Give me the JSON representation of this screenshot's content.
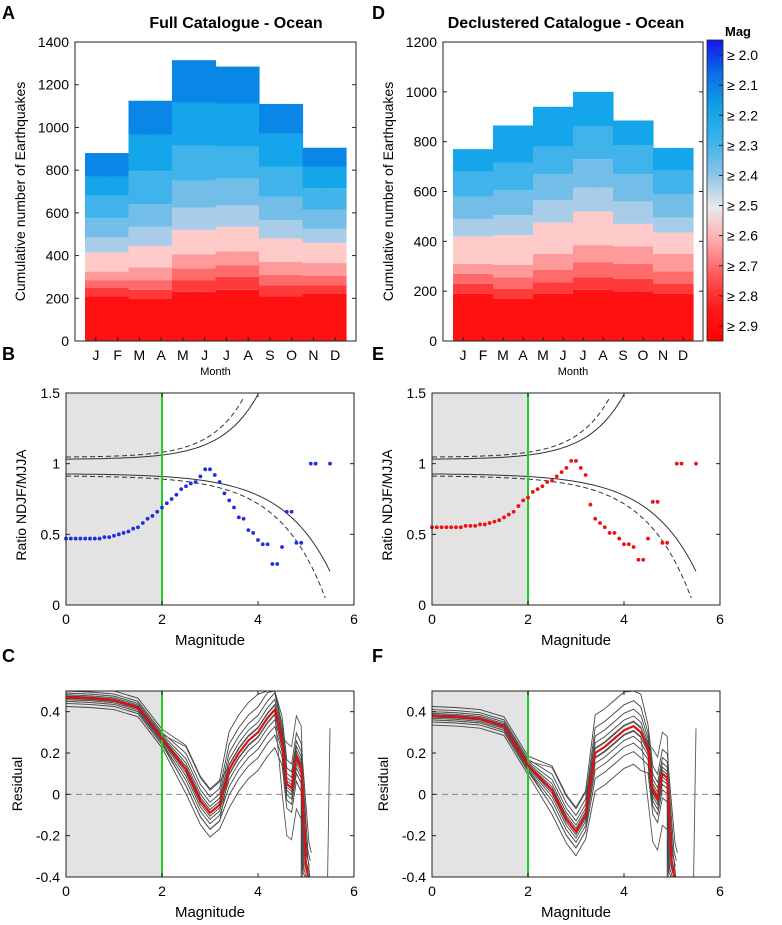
{
  "panels": {
    "A": {
      "letter": "A",
      "title": "Full Catalogue - Ocean"
    },
    "D": {
      "letter": "D",
      "title": "Declustered Catalogue - Ocean"
    },
    "B": {
      "letter": "B"
    },
    "E": {
      "letter": "E"
    },
    "C": {
      "letter": "C"
    },
    "F": {
      "letter": "F"
    }
  },
  "colorbar": {
    "title": "Mag",
    "labels": [
      "≥ 2.0",
      "≥ 2.1",
      "≥ 2.2",
      "≥ 2.3",
      "≥ 2.4",
      "≥ 2.5",
      "≥ 2.6",
      "≥ 2.7",
      "≥ 2.8",
      "≥ 2.9"
    ]
  },
  "colors": {
    "stack": [
      "#ff1111",
      "#ff3a3a",
      "#ff6b6b",
      "#ff9a9a",
      "#ffcaca",
      "#a9cde8",
      "#73bde9",
      "#3fb3ea",
      "#14a5ea",
      "#0a86e6",
      "#6666f4"
    ],
    "colorbar": [
      "#1515f0",
      "#0a6ee6",
      "#10a0e8",
      "#3ab4ea",
      "#87c3ea",
      "#eaeaea",
      "#ffaaaa",
      "#ff5a5a",
      "#ff1a1a",
      "#ff0000"
    ],
    "ratio_full": "#1f2fe0",
    "ratio_declustered": "#ee1111",
    "threshold": "#22cc22",
    "residual_mean": "#e01010"
  },
  "chart_data": [
    {
      "id": "A",
      "type": "bar",
      "stacked": true,
      "title": "Full Catalogue - Ocean",
      "xlabel": "Month",
      "ylabel": "Cumulative number of Earthquakes",
      "ylim": [
        0,
        1400
      ],
      "yticks": [
        0,
        200,
        400,
        600,
        800,
        1000,
        1200,
        1400
      ],
      "categories": [
        "J",
        "F",
        "M",
        "A",
        "M",
        "J",
        "J",
        "A",
        "S",
        "O",
        "N",
        "D"
      ],
      "series": [
        {
          "name": "≥ 2.9",
          "values": [
            210,
            210,
            200,
            200,
            230,
            230,
            240,
            240,
            210,
            210,
            220,
            220
          ]
        },
        {
          "name": "≥ 2.8",
          "values": [
            40,
            40,
            40,
            40,
            55,
            55,
            60,
            60,
            50,
            50,
            40,
            40
          ]
        },
        {
          "name": "≥ 2.7",
          "values": [
            35,
            35,
            45,
            45,
            55,
            55,
            55,
            55,
            50,
            50,
            45,
            45
          ]
        },
        {
          "name": "≥ 2.6",
          "values": [
            40,
            40,
            60,
            60,
            65,
            65,
            65,
            65,
            60,
            60,
            60,
            60
          ]
        },
        {
          "name": "≥ 2.5",
          "values": [
            90,
            90,
            100,
            100,
            115,
            115,
            115,
            115,
            110,
            110,
            95,
            95
          ]
        },
        {
          "name": "≥ 2.4",
          "values": [
            70,
            70,
            90,
            90,
            105,
            105,
            100,
            100,
            85,
            85,
            65,
            65
          ]
        },
        {
          "name": "≥ 2.3",
          "values": [
            90,
            90,
            105,
            105,
            125,
            125,
            125,
            125,
            110,
            110,
            90,
            90
          ]
        },
        {
          "name": "≥ 2.2",
          "values": [
            105,
            105,
            155,
            155,
            165,
            165,
            150,
            150,
            140,
            140,
            100,
            100
          ]
        },
        {
          "name": "≥ 2.1",
          "values": [
            90,
            90,
            170,
            170,
            200,
            200,
            200,
            200,
            155,
            155,
            100,
            100
          ]
        },
        {
          "name": "≥ 2.0",
          "values": [
            110,
            110,
            160,
            160,
            200,
            200,
            175,
            175,
            140,
            140,
            90,
            90
          ]
        }
      ]
    },
    {
      "id": "D",
      "type": "bar",
      "stacked": true,
      "title": "Declustered Catalogue - Ocean",
      "xlabel": "Month",
      "ylabel": "Cumulative number of Earthquakes",
      "ylim": [
        0,
        1200
      ],
      "yticks": [
        0,
        200,
        400,
        600,
        800,
        1000,
        1200
      ],
      "categories": [
        "J",
        "F",
        "M",
        "A",
        "M",
        "J",
        "J",
        "A",
        "S",
        "O",
        "N",
        "D"
      ],
      "series": [
        {
          "name": "≥ 2.9",
          "values": [
            190,
            190,
            170,
            170,
            190,
            190,
            205,
            205,
            200,
            200,
            190,
            190
          ]
        },
        {
          "name": "≥ 2.8",
          "values": [
            40,
            40,
            40,
            40,
            45,
            45,
            50,
            50,
            50,
            50,
            40,
            40
          ]
        },
        {
          "name": "≥ 2.7",
          "values": [
            40,
            40,
            45,
            45,
            50,
            50,
            60,
            60,
            60,
            60,
            50,
            50
          ]
        },
        {
          "name": "≥ 2.6",
          "values": [
            40,
            40,
            50,
            50,
            65,
            65,
            70,
            70,
            70,
            70,
            70,
            70
          ]
        },
        {
          "name": "≥ 2.5",
          "values": [
            110,
            110,
            120,
            120,
            125,
            125,
            135,
            135,
            90,
            90,
            85,
            85
          ]
        },
        {
          "name": "≥ 2.4",
          "values": [
            70,
            70,
            80,
            80,
            90,
            90,
            95,
            95,
            90,
            90,
            60,
            60
          ]
        },
        {
          "name": "≥ 2.3",
          "values": [
            90,
            90,
            100,
            100,
            105,
            105,
            115,
            115,
            110,
            110,
            95,
            95
          ]
        },
        {
          "name": "≥ 2.2",
          "values": [
            100,
            100,
            110,
            110,
            110,
            110,
            130,
            130,
            115,
            115,
            95,
            95
          ]
        },
        {
          "name": "≥ 2.1",
          "values": [
            90,
            90,
            150,
            150,
            160,
            160,
            140,
            140,
            100,
            100,
            90,
            90
          ]
        }
      ]
    },
    {
      "id": "B",
      "type": "scatter",
      "xlabel": "Magnitude",
      "ylabel": "Ratio NDJF/MJJA",
      "xlim": [
        0,
        6
      ],
      "ylim": [
        0,
        1.5
      ],
      "xticks": [
        0,
        2,
        4,
        6
      ],
      "yticks": [
        0,
        0.5,
        1,
        1.5
      ],
      "shaded_x": [
        0,
        2
      ],
      "threshold_x": 2,
      "points": [
        [
          0.0,
          0.47
        ],
        [
          0.1,
          0.47
        ],
        [
          0.2,
          0.47
        ],
        [
          0.3,
          0.47
        ],
        [
          0.4,
          0.47
        ],
        [
          0.5,
          0.47
        ],
        [
          0.6,
          0.47
        ],
        [
          0.7,
          0.47
        ],
        [
          0.8,
          0.48
        ],
        [
          0.9,
          0.48
        ],
        [
          1.0,
          0.49
        ],
        [
          1.1,
          0.5
        ],
        [
          1.2,
          0.51
        ],
        [
          1.3,
          0.52
        ],
        [
          1.4,
          0.54
        ],
        [
          1.5,
          0.55
        ],
        [
          1.6,
          0.58
        ],
        [
          1.7,
          0.61
        ],
        [
          1.8,
          0.63
        ],
        [
          1.9,
          0.66
        ],
        [
          2.0,
          0.69
        ],
        [
          2.1,
          0.72
        ],
        [
          2.2,
          0.75
        ],
        [
          2.3,
          0.78
        ],
        [
          2.4,
          0.82
        ],
        [
          2.5,
          0.84
        ],
        [
          2.6,
          0.86
        ],
        [
          2.7,
          0.87
        ],
        [
          2.8,
          0.91
        ],
        [
          2.9,
          0.96
        ],
        [
          3.0,
          0.96
        ],
        [
          3.1,
          0.92
        ],
        [
          3.2,
          0.87
        ],
        [
          3.3,
          0.79
        ],
        [
          3.4,
          0.74
        ],
        [
          3.5,
          0.69
        ],
        [
          3.6,
          0.62
        ],
        [
          3.7,
          0.61
        ],
        [
          3.8,
          0.53
        ],
        [
          3.9,
          0.51
        ],
        [
          4.0,
          0.46
        ],
        [
          4.1,
          0.43
        ],
        [
          4.2,
          0.43
        ],
        [
          4.3,
          0.29
        ],
        [
          4.4,
          0.29
        ],
        [
          4.5,
          0.41
        ],
        [
          4.6,
          0.66
        ],
        [
          4.7,
          0.66
        ],
        [
          4.8,
          0.44
        ],
        [
          4.9,
          0.44
        ],
        [
          5.1,
          1.0
        ],
        [
          5.2,
          1.0
        ],
        [
          5.5,
          1.0
        ]
      ]
    },
    {
      "id": "E",
      "type": "scatter",
      "xlabel": "Magnitude",
      "ylabel": "Ratio NDJF/MJJA",
      "xlim": [
        0,
        6
      ],
      "ylim": [
        0,
        1.5
      ],
      "xticks": [
        0,
        2,
        4,
        6
      ],
      "yticks": [
        0,
        0.5,
        1,
        1.5
      ],
      "shaded_x": [
        0,
        2
      ],
      "threshold_x": 2,
      "points": [
        [
          0.0,
          0.55
        ],
        [
          0.1,
          0.55
        ],
        [
          0.2,
          0.55
        ],
        [
          0.3,
          0.55
        ],
        [
          0.4,
          0.55
        ],
        [
          0.5,
          0.55
        ],
        [
          0.6,
          0.55
        ],
        [
          0.7,
          0.56
        ],
        [
          0.8,
          0.56
        ],
        [
          0.9,
          0.56
        ],
        [
          1.0,
          0.57
        ],
        [
          1.1,
          0.57
        ],
        [
          1.2,
          0.58
        ],
        [
          1.3,
          0.59
        ],
        [
          1.4,
          0.6
        ],
        [
          1.5,
          0.62
        ],
        [
          1.6,
          0.64
        ],
        [
          1.7,
          0.66
        ],
        [
          1.8,
          0.7
        ],
        [
          1.9,
          0.74
        ],
        [
          2.0,
          0.76
        ],
        [
          2.1,
          0.8
        ],
        [
          2.2,
          0.82
        ],
        [
          2.3,
          0.84
        ],
        [
          2.4,
          0.87
        ],
        [
          2.5,
          0.88
        ],
        [
          2.6,
          0.91
        ],
        [
          2.7,
          0.94
        ],
        [
          2.8,
          0.97
        ],
        [
          2.9,
          1.02
        ],
        [
          3.0,
          1.02
        ],
        [
          3.1,
          0.97
        ],
        [
          3.2,
          0.92
        ],
        [
          3.3,
          0.71
        ],
        [
          3.4,
          0.61
        ],
        [
          3.5,
          0.58
        ],
        [
          3.6,
          0.55
        ],
        [
          3.7,
          0.51
        ],
        [
          3.8,
          0.51
        ],
        [
          3.9,
          0.47
        ],
        [
          4.0,
          0.43
        ],
        [
          4.1,
          0.43
        ],
        [
          4.2,
          0.41
        ],
        [
          4.3,
          0.32
        ],
        [
          4.4,
          0.32
        ],
        [
          4.5,
          0.47
        ],
        [
          4.6,
          0.73
        ],
        [
          4.7,
          0.73
        ],
        [
          4.8,
          0.44
        ],
        [
          4.9,
          0.44
        ],
        [
          5.1,
          1.0
        ],
        [
          5.2,
          1.0
        ],
        [
          5.5,
          1.0
        ]
      ]
    },
    {
      "id": "C",
      "type": "line",
      "xlabel": "Magnitude",
      "ylabel": "Residual",
      "xlim": [
        0,
        6
      ],
      "ylim": [
        -0.4,
        0.5
      ],
      "xticks": [
        0,
        2,
        4,
        6
      ],
      "yticks": [
        -0.4,
        -0.2,
        0,
        0.2,
        0.4
      ],
      "shaded_x": [
        0,
        2
      ],
      "threshold_x": 2,
      "mean_residual": [
        [
          0.0,
          0.47
        ],
        [
          0.5,
          0.465
        ],
        [
          1.0,
          0.455
        ],
        [
          1.5,
          0.42
        ],
        [
          2.0,
          0.27
        ],
        [
          2.5,
          0.12
        ],
        [
          2.8,
          -0.03
        ],
        [
          3.0,
          -0.09
        ],
        [
          3.2,
          -0.05
        ],
        [
          3.4,
          0.12
        ],
        [
          3.6,
          0.2
        ],
        [
          3.8,
          0.26
        ],
        [
          4.0,
          0.3
        ],
        [
          4.2,
          0.37
        ],
        [
          4.35,
          0.41
        ],
        [
          4.5,
          0.26
        ],
        [
          4.6,
          0.05
        ],
        [
          4.7,
          0.03
        ],
        [
          4.8,
          0.18
        ],
        [
          4.9,
          0.13
        ],
        [
          5.0,
          -0.35
        ],
        [
          5.05,
          -0.4
        ]
      ]
    },
    {
      "id": "F",
      "type": "line",
      "xlabel": "Magnitude",
      "ylabel": "Residual",
      "xlim": [
        0,
        6
      ],
      "ylim": [
        -0.4,
        0.5
      ],
      "xticks": [
        0,
        2,
        4,
        6
      ],
      "yticks": [
        -0.4,
        -0.2,
        0,
        0.2,
        0.4
      ],
      "shaded_x": [
        0,
        2
      ],
      "threshold_x": 2,
      "mean_residual": [
        [
          0.0,
          0.38
        ],
        [
          0.5,
          0.375
        ],
        [
          1.0,
          0.365
        ],
        [
          1.5,
          0.33
        ],
        [
          2.0,
          0.14
        ],
        [
          2.5,
          0.02
        ],
        [
          2.8,
          -0.12
        ],
        [
          3.0,
          -0.18
        ],
        [
          3.2,
          -0.1
        ],
        [
          3.4,
          0.2
        ],
        [
          3.6,
          0.23
        ],
        [
          3.8,
          0.27
        ],
        [
          4.0,
          0.31
        ],
        [
          4.2,
          0.33
        ],
        [
          4.35,
          0.3
        ],
        [
          4.5,
          0.22
        ],
        [
          4.6,
          0.02
        ],
        [
          4.7,
          -0.02
        ],
        [
          4.8,
          0.1
        ],
        [
          4.9,
          0.08
        ],
        [
          5.0,
          -0.35
        ],
        [
          5.05,
          -0.4
        ]
      ]
    }
  ]
}
